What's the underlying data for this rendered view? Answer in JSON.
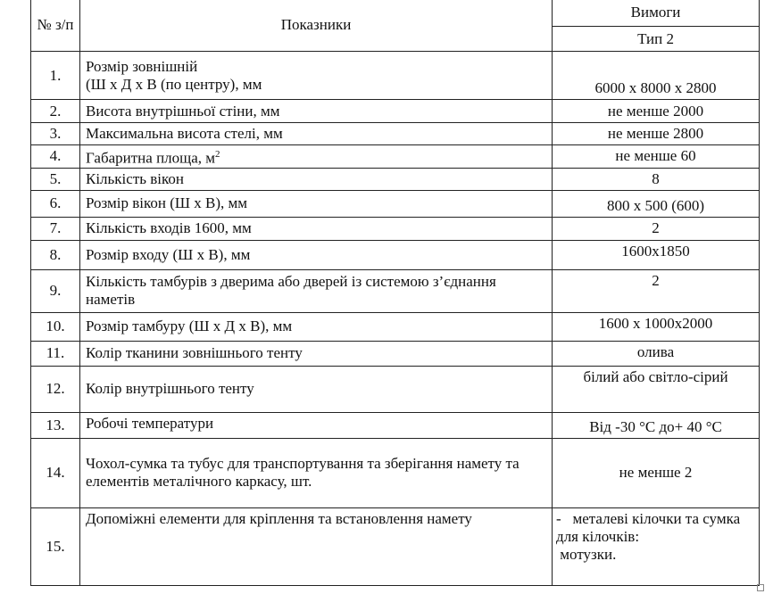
{
  "header": {
    "num": "№ з/п",
    "indicators": "Показники",
    "requirements": "Вимоги",
    "type": "Тип 2"
  },
  "rows": [
    {
      "num": "1.",
      "indicator_line1": "Розмір зовнішній",
      "indicator_line2": "(Ш х Д х В (по центру), мм",
      "value": "6000 х 8000 х 2800"
    },
    {
      "num": "2.",
      "indicator": "Висота внутрішньої стіни, мм",
      "value": "не менше 2000"
    },
    {
      "num": "3.",
      "indicator": "Максимальна висота стелі, мм",
      "value": "не менше 2800"
    },
    {
      "num": "4.",
      "indicator": "Габаритна площа, м",
      "indicator_sup": "2",
      "value": "не менше 60"
    },
    {
      "num": "5.",
      "indicator": "Кількість вікон",
      "value": "8"
    },
    {
      "num": "6.",
      "indicator": "Розмір вікон (Ш х В), мм",
      "value": "800 х 500 (600)"
    },
    {
      "num": "7.",
      "indicator": "Кількість входів 1600, мм",
      "value": "2"
    },
    {
      "num": "8.",
      "indicator": "Розмір входу (Ш х В), мм",
      "value": "1600х1850"
    },
    {
      "num": "9.",
      "indicator": "Кількість тамбурів з дверима або дверей із системою з’єднання наметів",
      "value": "2"
    },
    {
      "num": "10.",
      "indicator": "Розмір тамбуру (Ш х Д х В), мм",
      "value": "1600 х 1000х2000"
    },
    {
      "num": "11.",
      "indicator": "Колір тканини зовнішнього тенту",
      "value": "олива"
    },
    {
      "num": "12.",
      "indicator": "Колір внутрішнього тенту",
      "value": "білий або світло-сірий"
    },
    {
      "num": "13.",
      "indicator": "Робочі температури",
      "value": "Від -30 °С до+ 40 °С"
    },
    {
      "num": "14.",
      "indicator": "Чохол-сумка та тубус для транспортування та зберігання намету та елементів металічного каркасу, шт.",
      "value": "не менше 2"
    },
    {
      "num": "15.",
      "indicator": "Допоміжні елементи для кріплення та встановлення намету",
      "value_line1": "-   металеві кілочки та сумка для кілочків:",
      "value_line2": " мотузки."
    }
  ]
}
